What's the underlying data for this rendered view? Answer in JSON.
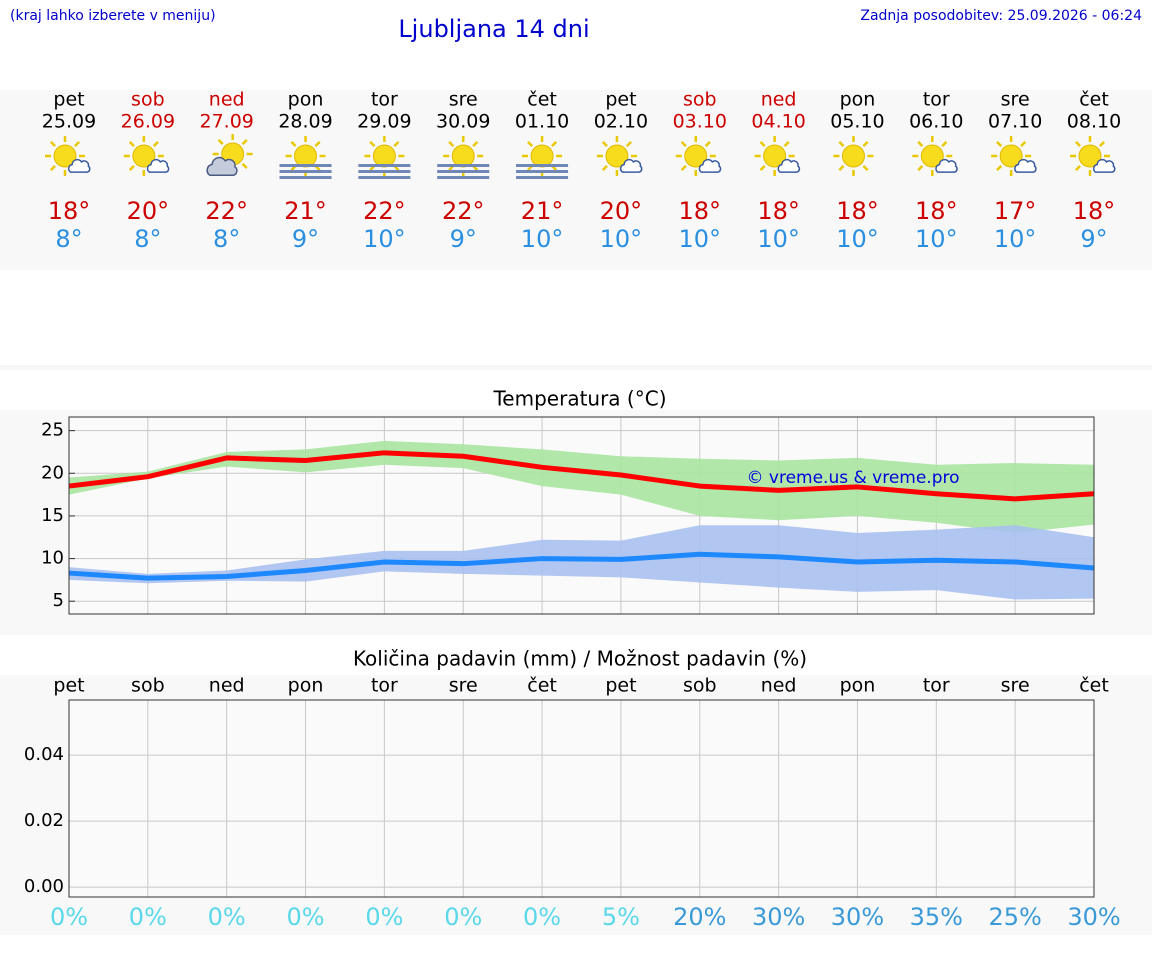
{
  "header": {
    "hint": "(kraj lahko izberete v meniju)",
    "title": "Ljubljana 14 dni",
    "updated": "Zadnja posodobitev: 25.09.2026 - 06:24"
  },
  "days": [
    {
      "name": "pet",
      "date": "25.09",
      "high": "18°",
      "low": "8°",
      "color": "#000000"
    },
    {
      "name": "sob",
      "date": "26.09",
      "high": "20°",
      "low": "8°",
      "color": "#cc0000"
    },
    {
      "name": "ned",
      "date": "27.09",
      "high": "22°",
      "low": "8°",
      "color": "#cc0000"
    },
    {
      "name": "pon",
      "date": "28.09",
      "high": "21°",
      "low": "9°",
      "color": "#000000"
    },
    {
      "name": "tor",
      "date": "29.09",
      "high": "22°",
      "low": "10°",
      "color": "#000000"
    },
    {
      "name": "sre",
      "date": "30.09",
      "high": "22°",
      "low": "9°",
      "color": "#000000"
    },
    {
      "name": "čet",
      "date": "01.10",
      "high": "21°",
      "low": "10°",
      "color": "#000000"
    },
    {
      "name": "pet",
      "date": "02.10",
      "high": "20°",
      "low": "10°",
      "color": "#000000"
    },
    {
      "name": "sob",
      "date": "03.10",
      "high": "18°",
      "low": "10°",
      "color": "#cc0000"
    },
    {
      "name": "ned",
      "date": "04.10",
      "high": "18°",
      "low": "10°",
      "color": "#cc0000"
    },
    {
      "name": "pon",
      "date": "05.10",
      "high": "18°",
      "low": "10°",
      "color": "#000000"
    },
    {
      "name": "tor",
      "date": "06.10",
      "high": "18°",
      "low": "10°",
      "color": "#000000"
    },
    {
      "name": "sre",
      "date": "07.10",
      "high": "17°",
      "low": "10°",
      "color": "#000000"
    },
    {
      "name": "čet",
      "date": "08.10",
      "high": "18°",
      "low": "9°",
      "color": "#000000"
    }
  ],
  "chart_data": [
    {
      "type": "line",
      "title": "Temperatura (°C)",
      "annotation": "© vreme.us & vreme.pro",
      "ylim": [
        3.5,
        26.6
      ],
      "yticks": [
        5,
        10,
        15,
        20,
        25
      ],
      "grid": true,
      "bands": [
        {
          "color": "#a8e4a0",
          "upper": [
            19.5,
            20.2,
            22.5,
            22.8,
            23.8,
            23.4,
            22.8,
            22.0,
            21.7,
            21.5,
            21.8,
            21.0,
            21.2,
            21.0
          ],
          "lower": [
            17.5,
            19.4,
            20.8,
            20.1,
            21.0,
            20.6,
            18.5,
            17.5,
            15.0,
            14.5,
            15.0,
            14.2,
            13.0,
            14.0
          ]
        },
        {
          "color": "#a8c0f0",
          "upper": [
            9.0,
            8.2,
            8.6,
            9.9,
            10.9,
            10.9,
            12.2,
            12.1,
            13.9,
            13.9,
            13.0,
            13.4,
            13.9,
            12.5
          ],
          "lower": [
            7.5,
            7.1,
            7.4,
            7.3,
            8.5,
            8.2,
            8.0,
            7.8,
            7.2,
            6.6,
            6.1,
            6.3,
            5.2,
            5.3
          ]
        }
      ],
      "series": [
        {
          "color": "#ff0000",
          "values": [
            18.5,
            19.6,
            21.8,
            21.5,
            22.4,
            22.0,
            20.7,
            19.8,
            18.5,
            18.0,
            18.4,
            17.6,
            17.0,
            17.6
          ]
        },
        {
          "color": "#1e88ff",
          "values": [
            8.3,
            7.7,
            7.9,
            8.6,
            9.6,
            9.4,
            10.0,
            9.9,
            10.5,
            10.2,
            9.6,
            9.8,
            9.6,
            8.9
          ]
        }
      ]
    },
    {
      "type": "bar",
      "title": "Količina padavin (mm) / Možnost padavin (%)",
      "categories": [
        "pet",
        "sob",
        "ned",
        "pon",
        "tor",
        "sre",
        "čet",
        "pet",
        "sob",
        "ned",
        "pon",
        "tor",
        "sre",
        "čet"
      ],
      "values": [
        0,
        0,
        0,
        0,
        0,
        0,
        0,
        0,
        0,
        0,
        0,
        0,
        0,
        0
      ],
      "color": "#444444",
      "ylim": [
        -0.003,
        0.0567
      ],
      "yticks": [
        {
          "value": 0,
          "label": "0.00"
        },
        {
          "value": 0.02,
          "label": "0.02"
        },
        {
          "value": 0.04,
          "label": "0.04"
        }
      ],
      "grid": true,
      "probability": {
        "values": [
          0,
          0,
          0,
          0,
          0,
          0,
          0,
          5,
          20,
          30,
          30,
          35,
          25,
          30
        ],
        "value_labels": [
          "0%",
          "0%",
          "0%",
          "0%",
          "0%",
          "0%",
          "0%",
          "5%",
          "20%",
          "30%",
          "30%",
          "35%",
          "25%",
          "30%"
        ],
        "colors": [
          "#5ad8ea",
          "#5ad8ea",
          "#5ad8ea",
          "#5ad8ea",
          "#5ad8ea",
          "#5ad8ea",
          "#5ad8ea",
          "#5ad8ea",
          "#3a9ad8",
          "#3a9ad8",
          "#3a9ad8",
          "#3a9ad8",
          "#3a9ad8",
          "#3a9ad8"
        ]
      }
    }
  ]
}
